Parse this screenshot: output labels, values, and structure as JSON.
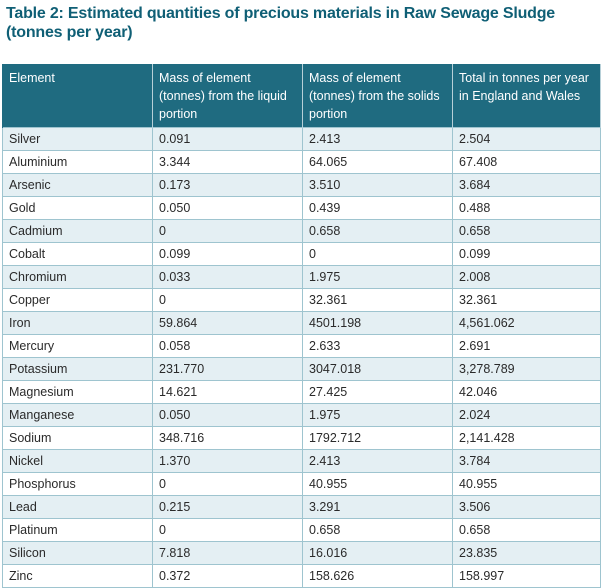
{
  "title": "Table 2: Estimated quantities of precious materials in Raw Sewage Sludge (tonnes per year)",
  "table": {
    "headers": [
      "Element",
      "Mass of element (tonnes) from the liquid portion",
      "Mass of element (tonnes) from the solids portion",
      "Total in tonnes per year in England and Wales"
    ],
    "rows": [
      [
        "Silver",
        "0.091",
        "2.413",
        "2.504"
      ],
      [
        "Aluminium",
        "3.344",
        "64.065",
        "67.408"
      ],
      [
        "Arsenic",
        "0.173",
        "3.510",
        "3.684"
      ],
      [
        "Gold",
        "0.050",
        "0.439",
        "0.488"
      ],
      [
        "Cadmium",
        "0",
        "0.658",
        "0.658"
      ],
      [
        "Cobalt",
        "0.099",
        "0",
        "0.099"
      ],
      [
        "Chromium",
        "0.033",
        "1.975",
        "2.008"
      ],
      [
        "Copper",
        "0",
        "32.361",
        "32.361"
      ],
      [
        "Iron",
        "59.864",
        "4501.198",
        "4,561.062"
      ],
      [
        "Mercury",
        "0.058",
        "2.633",
        "2.691"
      ],
      [
        "Potassium",
        "231.770",
        "3047.018",
        "3,278.789"
      ],
      [
        "Magnesium",
        "14.621",
        "27.425",
        "42.046"
      ],
      [
        "Manganese",
        "0.050",
        "1.975",
        "2.024"
      ],
      [
        "Sodium",
        "348.716",
        "1792.712",
        "2,141.428"
      ],
      [
        "Nickel",
        "1.370",
        "2.413",
        "3.784"
      ],
      [
        "Phosphorus",
        "0",
        "40.955",
        "40.955"
      ],
      [
        "Lead",
        "0.215",
        "3.291",
        "3.506"
      ],
      [
        "Platinum",
        "0",
        "0.658",
        "0.658"
      ],
      [
        "Silicon",
        "7.818",
        "16.016",
        "23.835"
      ],
      [
        "Zinc",
        "0.372",
        "158.626",
        "158.997"
      ]
    ]
  },
  "colors": {
    "title": "#0f5f75",
    "header_background": "#1f6b80",
    "header_text": "#ffffff",
    "stripe": "#e4eff3",
    "border": "#9ec4cf"
  }
}
